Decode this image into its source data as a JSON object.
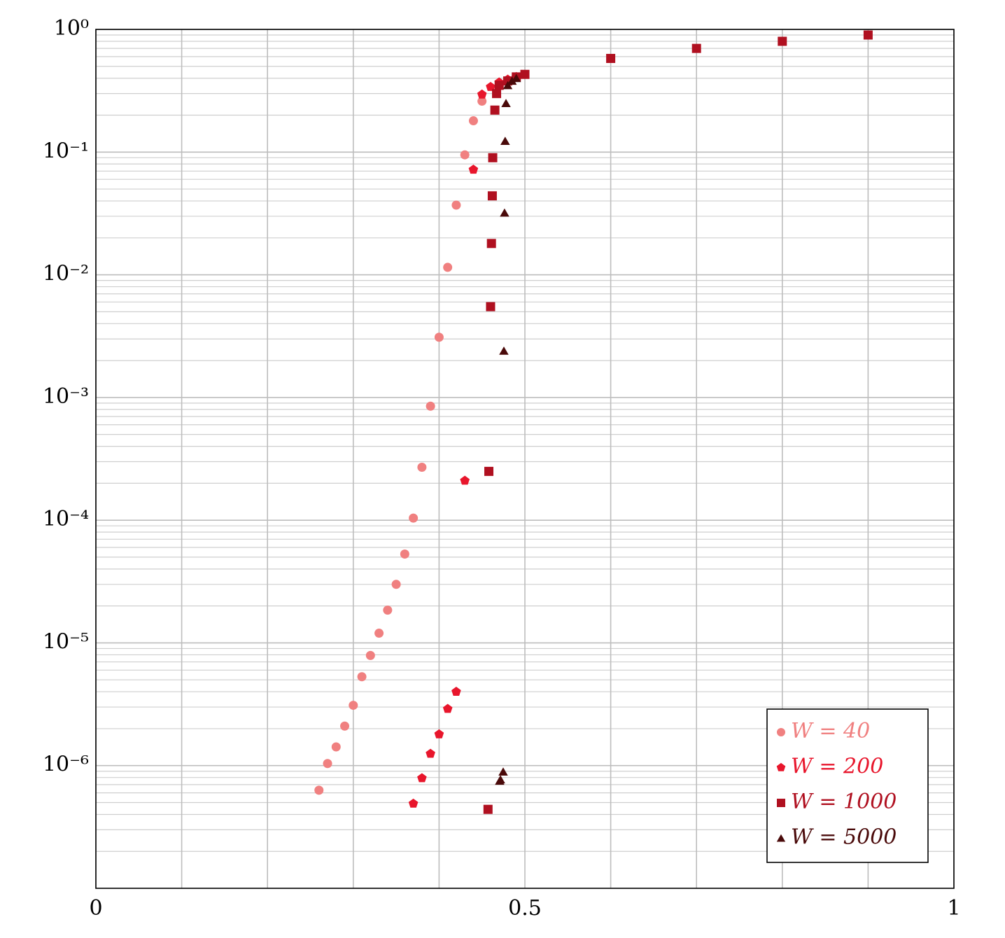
{
  "chart_data": {
    "type": "scatter",
    "log_y": true,
    "grid": true,
    "minor_grid": true,
    "legend": "lower right",
    "xlim": [
      0,
      1
    ],
    "ylim": [
      1e-07,
      1
    ],
    "xticks": [
      0,
      {
        "value": 0.1,
        "label": null
      },
      {
        "value": 0.2,
        "label": null
      },
      {
        "value": 0.3,
        "label": null
      },
      {
        "value": 0.4,
        "label": null
      },
      0.5,
      {
        "value": 0.6,
        "label": null
      },
      {
        "value": 0.7,
        "label": null
      },
      {
        "value": 0.8,
        "label": null
      },
      {
        "value": 0.9,
        "label": null
      },
      1
    ],
    "yticks": [
      {
        "value": 1,
        "label": "10⁰"
      },
      {
        "value": 0.1,
        "label": "10⁻¹"
      },
      {
        "value": 0.01,
        "label": "10⁻²"
      },
      {
        "value": 0.001,
        "label": "10⁻³"
      },
      {
        "value": 0.0001,
        "label": "10⁻⁴"
      },
      {
        "value": 1e-05,
        "label": "10⁻⁵"
      },
      {
        "value": 1e-06,
        "label": "10⁻⁶"
      }
    ],
    "series": [
      {
        "name": "W = 40",
        "color": "#f08080",
        "marker": "circle",
        "x": [
          0.26,
          0.27,
          0.28,
          0.29,
          0.3,
          0.31,
          0.32,
          0.33,
          0.34,
          0.35,
          0.36,
          0.37,
          0.38,
          0.39,
          0.4,
          0.41,
          0.42,
          0.43,
          0.44,
          0.45
        ],
        "values": [
          6.3e-07,
          1.04e-06,
          1.42e-06,
          2.1e-06,
          3.1e-06,
          5.3e-06,
          7.9e-06,
          1.2e-05,
          1.85e-05,
          3e-05,
          5.3e-05,
          0.000104,
          0.00027,
          0.00085,
          0.0031,
          0.0115,
          0.037,
          0.095,
          0.18,
          0.26
        ]
      },
      {
        "name": "W = 200",
        "color": "#e8162c",
        "marker": "pentagon",
        "x": [
          0.37,
          0.38,
          0.39,
          0.4,
          0.41,
          0.42,
          0.43,
          0.44,
          0.45,
          0.46,
          0.47,
          0.48,
          0.49
        ],
        "values": [
          4.9e-07,
          7.9e-07,
          1.25e-06,
          1.8e-06,
          2.9e-06,
          4e-06,
          0.00021,
          0.072,
          0.295,
          0.34,
          0.37,
          0.39,
          0.41
        ]
      },
      {
        "name": "W = 1000",
        "color": "#b01020",
        "marker": "square",
        "x": [
          0.457,
          0.458,
          0.46,
          0.461,
          0.462,
          0.4625,
          0.465,
          0.467,
          0.47,
          0.48,
          0.49,
          0.5,
          0.6,
          0.7,
          0.8,
          0.9
        ],
        "values": [
          4.4e-07,
          0.00025,
          0.0055,
          0.018,
          0.044,
          0.09,
          0.22,
          0.3,
          0.35,
          0.38,
          0.41,
          0.43,
          0.58,
          0.7,
          0.8,
          0.9
        ]
      },
      {
        "name": "W = 5000",
        "color": "#4a0a0a",
        "marker": "triangle",
        "x": [
          0.4706,
          0.4715,
          0.4747,
          0.4755,
          0.4763,
          0.477,
          0.478,
          0.48,
          0.485,
          0.49
        ],
        "values": [
          7.5e-07,
          7.7e-07,
          8.9e-07,
          0.0024,
          0.032,
          0.123,
          0.25,
          0.35,
          0.38,
          0.4
        ]
      }
    ]
  }
}
